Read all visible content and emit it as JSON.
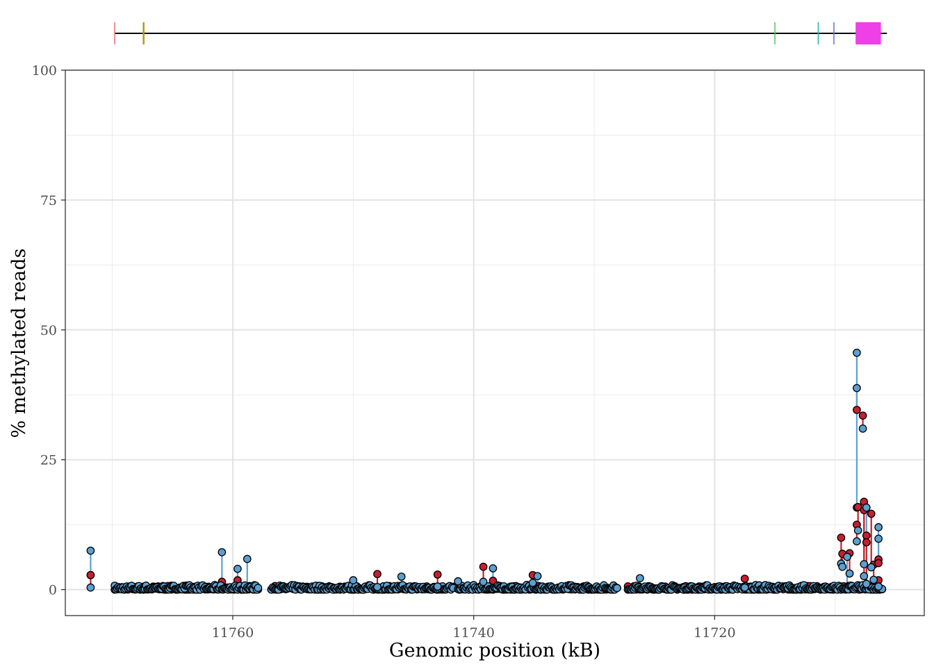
{
  "chart_data": {
    "type": "scatter",
    "xlabel": "Genomic position (kB)",
    "ylabel": "% methylated reads",
    "x_reversed": true,
    "xlim": [
      11773.9,
      11702.6
    ],
    "ylim": [
      -5,
      100
    ],
    "x_ticks": [
      11760,
      11740,
      11720
    ],
    "x_tick_labels": [
      "11760",
      "11740",
      "11720"
    ],
    "y_ticks": [
      0,
      25,
      50,
      75,
      100
    ],
    "y_tick_labels": [
      "0",
      "25",
      "50",
      "75",
      "100"
    ],
    "grid": true,
    "colors": {
      "series_a": "#c42030",
      "series_b": "#5c9fd0",
      "gene_line": "#000000"
    },
    "gene_track": {
      "span": [
        11769.8,
        11705.7
      ],
      "markers": [
        {
          "x": 11769.8,
          "color": "#e87777",
          "kind": "tick"
        },
        {
          "x": 11767.4,
          "color": "#b59a10",
          "kind": "tick"
        },
        {
          "x": 11715.0,
          "color": "#5cc76b",
          "kind": "tick"
        },
        {
          "x": 11711.4,
          "color": "#2ab5b8",
          "kind": "tick"
        },
        {
          "x": 11710.1,
          "color": "#5b7fe0",
          "kind": "tick"
        },
        {
          "x0": 11708.3,
          "x1": 11706.2,
          "color": "#ef3fe6",
          "kind": "block"
        }
      ]
    },
    "paired_points": [
      {
        "x": 11771.8,
        "a": 2.8,
        "b": 7.5
      },
      {
        "x": 11771.8,
        "a": 2.8,
        "b": 0.4
      },
      {
        "x": 11760.9,
        "a": 1.5,
        "b": 7.2
      },
      {
        "x": 11759.6,
        "a": 1.8,
        "b": 4.0
      },
      {
        "x": 11758.8,
        "a": 0.6,
        "b": 5.9
      },
      {
        "x": 11750.0,
        "a": 0.8,
        "b": 1.8
      },
      {
        "x": 11748.0,
        "a": 3.0,
        "b": 0.5
      },
      {
        "x": 11746.0,
        "a": 0.6,
        "b": 2.5
      },
      {
        "x": 11743.0,
        "a": 2.9,
        "b": 0.6
      },
      {
        "x": 11741.3,
        "a": 0.6,
        "b": 1.6
      },
      {
        "x": 11739.2,
        "a": 4.4,
        "b": 1.5
      },
      {
        "x": 11738.4,
        "a": 1.7,
        "b": 4.1
      },
      {
        "x": 11735.1,
        "a": 2.8,
        "b": 1.3
      },
      {
        "x": 11734.7,
        "a": 0.6,
        "b": 2.6
      },
      {
        "x": 11726.2,
        "a": 0.3,
        "b": 2.2
      },
      {
        "x": 11717.5,
        "a": 2.1,
        "b": 0.4
      },
      {
        "x": 11709.5,
        "a": 10.0,
        "b": 5.0
      },
      {
        "x": 11709.4,
        "a": 6.9,
        "b": 4.4
      },
      {
        "x": 11709.0,
        "a": 0.5,
        "b": 6.3
      },
      {
        "x": 11708.8,
        "a": 7.0,
        "b": 3.1
      },
      {
        "x": 11708.2,
        "a": 34.6,
        "b": 45.6
      },
      {
        "x": 11708.2,
        "a": 15.8,
        "b": 38.8
      },
      {
        "x": 11708.2,
        "a": 12.5,
        "b": 9.3
      },
      {
        "x": 11708.1,
        "a": 15.9,
        "b": 11.4
      },
      {
        "x": 11707.7,
        "a": 33.5,
        "b": 31.0
      },
      {
        "x": 11707.6,
        "a": 16.9,
        "b": 4.9
      },
      {
        "x": 11707.6,
        "a": 15.3,
        "b": 2.6
      },
      {
        "x": 11707.4,
        "a": 10.4,
        "b": 15.8
      },
      {
        "x": 11707.4,
        "a": 9.1,
        "b": 1.1
      },
      {
        "x": 11707.0,
        "a": 14.6,
        "b": 4.3
      },
      {
        "x": 11706.8,
        "a": 4.8,
        "b": 1.9
      },
      {
        "x": 11706.4,
        "a": 5.8,
        "b": 12.0
      },
      {
        "x": 11706.4,
        "a": 5.1,
        "b": 9.8
      },
      {
        "x": 11706.4,
        "a": 1.8,
        "b": 0.6
      }
    ],
    "baseline": {
      "segments": [
        [
          11769.8,
          11757.8
        ],
        [
          11756.8,
          11741.6
        ],
        [
          11741.3,
          11728.0
        ],
        [
          11727.2,
          11706.0
        ]
      ],
      "step": 0.1,
      "a_max": 0.7,
      "b_max": 0.9
    }
  }
}
